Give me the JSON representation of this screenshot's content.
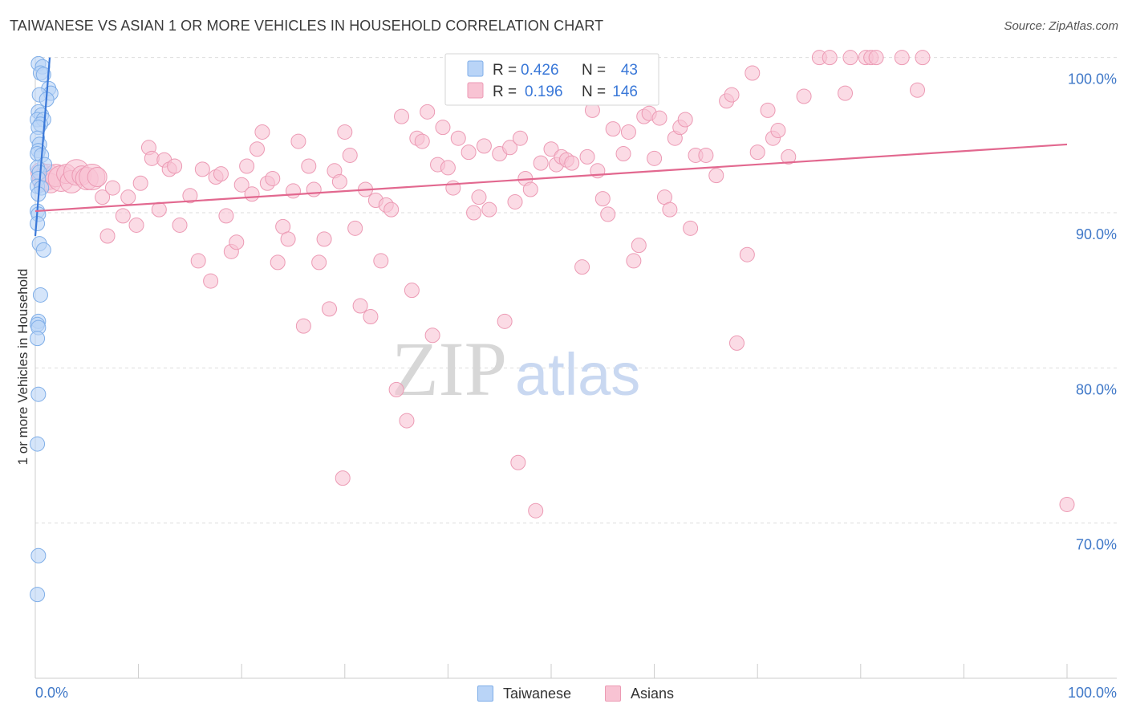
{
  "title": "TAIWANESE VS ASIAN 1 OR MORE VEHICLES IN HOUSEHOLD CORRELATION CHART",
  "source": "Source: ZipAtlas.com",
  "watermark": {
    "zip": "ZIP",
    "atlas": "atlas"
  },
  "colors": {
    "taiwanese_fill": "#b9d4f7",
    "taiwanese_stroke": "#7faee8",
    "taiwanese_line": "#3a78d8",
    "asians_fill": "#f8c3d3",
    "asians_stroke": "#ec9ab4",
    "asians_line": "#e2688f",
    "axis_label": "#3f78c8",
    "grid": "#dddddd"
  },
  "legend_box": {
    "rows": [
      {
        "r_label": "R =",
        "r_value": "0.426",
        "n_label": "N =",
        "n_value": "43"
      },
      {
        "r_label": "R =",
        "r_value": "0.196",
        "n_label": "N =",
        "n_value": "146"
      }
    ]
  },
  "legend_bottom": {
    "items": [
      "Taiwanese",
      "Asians"
    ]
  },
  "chart_data": {
    "type": "scatter",
    "title": "TAIWANESE VS ASIAN 1 OR MORE VEHICLES IN HOUSEHOLD CORRELATION CHART",
    "xlabel": "",
    "ylabel": "1 or more Vehicles in Household",
    "xlim": [
      0,
      100
    ],
    "ylim": [
      60,
      100.5
    ],
    "x_tick_labels": [
      "0.0%",
      "100.0%"
    ],
    "y_ticks": [
      70,
      80,
      90,
      100
    ],
    "y_tick_labels": [
      "70.0%",
      "80.0%",
      "90.0%",
      "100.0%"
    ],
    "series": [
      {
        "name": "Taiwanese",
        "R": 0.426,
        "N": 43,
        "trend": {
          "x": [
            0,
            1.4
          ],
          "y": [
            88.5,
            100.0
          ]
        },
        "points": [
          [
            0.3,
            99.6
          ],
          [
            0.7,
            99.4
          ],
          [
            0.5,
            99.0
          ],
          [
            0.8,
            98.9
          ],
          [
            1.3,
            98.0
          ],
          [
            1.5,
            97.7
          ],
          [
            0.4,
            97.6
          ],
          [
            1.1,
            97.3
          ],
          [
            0.3,
            96.5
          ],
          [
            0.6,
            96.3
          ],
          [
            0.2,
            96.0
          ],
          [
            0.8,
            96.0
          ],
          [
            0.5,
            95.7
          ],
          [
            0.3,
            95.5
          ],
          [
            0.2,
            94.8
          ],
          [
            0.4,
            94.4
          ],
          [
            0.3,
            94.0
          ],
          [
            0.2,
            93.8
          ],
          [
            0.6,
            93.7
          ],
          [
            0.9,
            93.1
          ],
          [
            0.2,
            92.9
          ],
          [
            0.4,
            92.6
          ],
          [
            0.3,
            92.2
          ],
          [
            0.2,
            91.7
          ],
          [
            0.6,
            91.6
          ],
          [
            0.3,
            91.2
          ],
          [
            0.2,
            90.1
          ],
          [
            0.3,
            89.9
          ],
          [
            0.2,
            89.3
          ],
          [
            0.4,
            88.0
          ],
          [
            0.8,
            87.6
          ],
          [
            0.5,
            84.7
          ],
          [
            0.3,
            83.0
          ],
          [
            0.2,
            82.8
          ],
          [
            0.3,
            82.6
          ],
          [
            0.2,
            81.9
          ],
          [
            0.3,
            78.3
          ],
          [
            0.2,
            75.1
          ],
          [
            0.3,
            67.9
          ],
          [
            0.2,
            65.4
          ]
        ]
      },
      {
        "name": "Asians",
        "R": 0.196,
        "N": 146,
        "trend": {
          "x": [
            0,
            100
          ],
          "y": [
            90.1,
            94.4
          ]
        },
        "points": [
          [
            0.5,
            92.6
          ],
          [
            0.8,
            92.1
          ],
          [
            1.2,
            92.3
          ],
          [
            1.5,
            91.9
          ],
          [
            2.0,
            92.4
          ],
          [
            2.5,
            92.2
          ],
          [
            3.0,
            92.5
          ],
          [
            3.5,
            92.0
          ],
          [
            4.0,
            92.6
          ],
          [
            4.5,
            92.4
          ],
          [
            5.0,
            92.2
          ],
          [
            5.5,
            92.3
          ],
          [
            6.0,
            92.3
          ],
          [
            6.5,
            91.0
          ],
          [
            7.0,
            88.5
          ],
          [
            7.5,
            91.6
          ],
          [
            8.5,
            89.8
          ],
          [
            9.0,
            91.0
          ],
          [
            9.8,
            89.2
          ],
          [
            10.2,
            91.9
          ],
          [
            11.0,
            94.2
          ],
          [
            11.3,
            93.5
          ],
          [
            12.0,
            90.2
          ],
          [
            12.5,
            93.4
          ],
          [
            13.0,
            92.8
          ],
          [
            13.5,
            93.0
          ],
          [
            14.0,
            89.2
          ],
          [
            15.0,
            91.1
          ],
          [
            15.8,
            86.9
          ],
          [
            16.2,
            92.8
          ],
          [
            17.0,
            85.6
          ],
          [
            17.5,
            92.3
          ],
          [
            18.0,
            92.5
          ],
          [
            18.5,
            89.8
          ],
          [
            19.0,
            87.5
          ],
          [
            19.5,
            88.1
          ],
          [
            20.0,
            91.8
          ],
          [
            20.5,
            93.0
          ],
          [
            21.0,
            91.2
          ],
          [
            21.5,
            94.1
          ],
          [
            22.0,
            95.2
          ],
          [
            22.5,
            91.9
          ],
          [
            23.0,
            92.2
          ],
          [
            23.5,
            86.8
          ],
          [
            24.0,
            89.1
          ],
          [
            24.5,
            88.3
          ],
          [
            25.0,
            91.4
          ],
          [
            25.5,
            94.6
          ],
          [
            26.0,
            82.7
          ],
          [
            26.5,
            93.0
          ],
          [
            27.0,
            91.5
          ],
          [
            27.5,
            86.8
          ],
          [
            28.0,
            88.3
          ],
          [
            28.5,
            83.8
          ],
          [
            29.0,
            92.7
          ],
          [
            29.5,
            92.0
          ],
          [
            30.0,
            95.2
          ],
          [
            30.5,
            93.7
          ],
          [
            31.0,
            89.0
          ],
          [
            32.0,
            91.5
          ],
          [
            32.5,
            83.3
          ],
          [
            33.0,
            90.8
          ],
          [
            33.5,
            86.9
          ],
          [
            34.0,
            90.5
          ],
          [
            34.5,
            90.2
          ],
          [
            35.0,
            78.6
          ],
          [
            35.5,
            96.2
          ],
          [
            36.0,
            76.6
          ],
          [
            36.5,
            85.0
          ],
          [
            37.0,
            94.8
          ],
          [
            37.5,
            94.6
          ],
          [
            38.0,
            96.5
          ],
          [
            39.0,
            93.1
          ],
          [
            39.5,
            95.5
          ],
          [
            40.0,
            92.9
          ],
          [
            40.5,
            91.6
          ],
          [
            41.0,
            94.8
          ],
          [
            42.0,
            93.9
          ],
          [
            42.5,
            90.0
          ],
          [
            43.0,
            91.0
          ],
          [
            43.5,
            94.3
          ],
          [
            44.0,
            90.2
          ],
          [
            45.0,
            93.8
          ],
          [
            46.0,
            94.2
          ],
          [
            46.5,
            90.7
          ],
          [
            47.0,
            94.8
          ],
          [
            47.5,
            92.2
          ],
          [
            48.0,
            91.5
          ],
          [
            48.5,
            70.8
          ],
          [
            49.0,
            93.2
          ],
          [
            50.0,
            94.1
          ],
          [
            50.5,
            93.1
          ],
          [
            51.0,
            93.6
          ],
          [
            51.5,
            93.4
          ],
          [
            52.0,
            93.2
          ],
          [
            53.0,
            86.5
          ],
          [
            53.5,
            93.6
          ],
          [
            54.0,
            96.6
          ],
          [
            54.5,
            92.7
          ],
          [
            55.0,
            90.9
          ],
          [
            55.5,
            89.9
          ],
          [
            56.0,
            95.4
          ],
          [
            57.0,
            93.8
          ],
          [
            57.5,
            95.2
          ],
          [
            58.0,
            86.9
          ],
          [
            58.5,
            87.9
          ],
          [
            59.0,
            96.2
          ],
          [
            59.5,
            96.4
          ],
          [
            60.0,
            93.5
          ],
          [
            60.5,
            96.1
          ],
          [
            61.0,
            91.0
          ],
          [
            61.5,
            90.2
          ],
          [
            62.0,
            94.8
          ],
          [
            62.5,
            95.5
          ],
          [
            63.0,
            96.0
          ],
          [
            63.5,
            89.0
          ],
          [
            64.0,
            93.7
          ],
          [
            65.0,
            93.7
          ],
          [
            66.0,
            92.4
          ],
          [
            67.0,
            97.2
          ],
          [
            67.5,
            97.6
          ],
          [
            68.0,
            81.6
          ],
          [
            69.0,
            87.3
          ],
          [
            69.5,
            99.0
          ],
          [
            70.0,
            93.9
          ],
          [
            71.0,
            96.6
          ],
          [
            71.5,
            94.8
          ],
          [
            72.0,
            95.3
          ],
          [
            73.0,
            93.6
          ],
          [
            74.5,
            97.5
          ],
          [
            76.0,
            100.0
          ],
          [
            77.0,
            100.0
          ],
          [
            78.5,
            97.7
          ],
          [
            79.0,
            100.0
          ],
          [
            80.5,
            100.0
          ],
          [
            81.0,
            100.0
          ],
          [
            81.5,
            100.0
          ],
          [
            84.0,
            100.0
          ],
          [
            85.5,
            97.9
          ],
          [
            86.0,
            100.0
          ],
          [
            100.0,
            71.2
          ],
          [
            38.5,
            82.1
          ],
          [
            45.5,
            83.0
          ],
          [
            46.8,
            73.9
          ],
          [
            31.5,
            84.0
          ],
          [
            29.8,
            72.9
          ]
        ]
      }
    ]
  }
}
